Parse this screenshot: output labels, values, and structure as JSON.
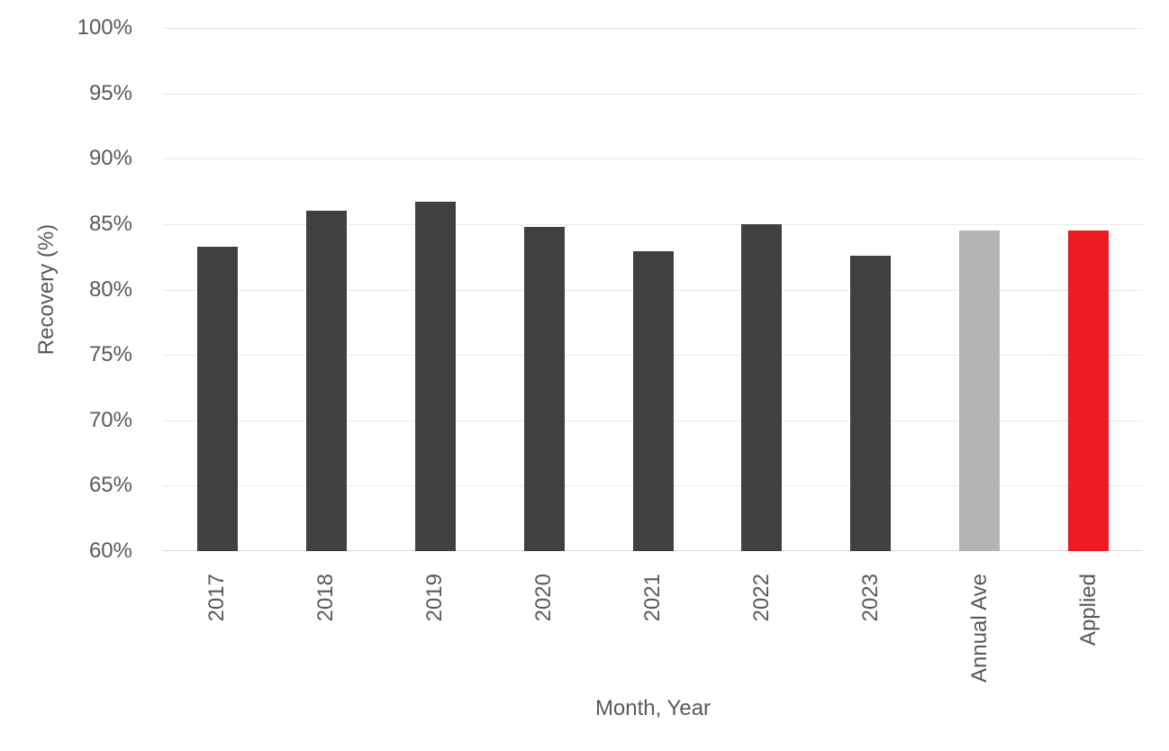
{
  "chart_data": {
    "type": "bar",
    "title": "",
    "xlabel": "Month, Year",
    "ylabel": "Recovery (%)",
    "categories": [
      "2017",
      "2018",
      "2019",
      "2020",
      "2021",
      "2022",
      "2023",
      "Annual Ave",
      "Applied"
    ],
    "values": [
      83.3,
      86.0,
      86.7,
      84.8,
      82.9,
      85.0,
      82.6,
      84.5,
      84.5
    ],
    "bar_colors": [
      "#404042",
      "#404042",
      "#404042",
      "#404042",
      "#404042",
      "#404042",
      "#404042",
      "#B4B4B4",
      "#ED1C24"
    ],
    "ylim": [
      60,
      100
    ],
    "ytick_step": 5,
    "ytick_labels": [
      "60%",
      "65%",
      "70%",
      "75%",
      "80%",
      "85%",
      "90%",
      "95%",
      "100%"
    ],
    "grid": "horizontal",
    "legend": "none",
    "colors": {
      "default_bar": "#404042",
      "annual_ave_bar": "#B4B4B4",
      "applied_bar": "#ED1C24",
      "grid_line": "#E8E8E8",
      "axis_line": "#D9D9D9",
      "text": "#595959",
      "background": "#FFFFFF"
    }
  }
}
